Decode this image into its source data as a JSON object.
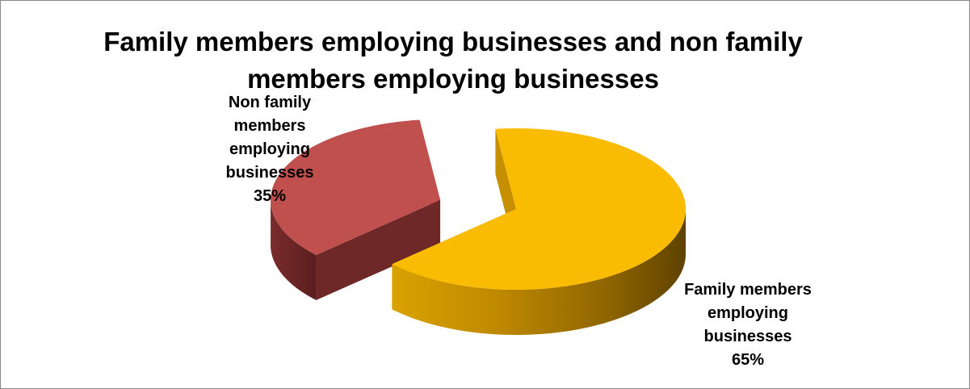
{
  "chart_data": {
    "type": "pie",
    "title": "Family members employing businesses and non family members employing businesses",
    "slices": [
      {
        "label": "Family members employing businesses",
        "value": 65,
        "value_label": "65%",
        "color": "#F9BC02",
        "side_color": "#C68F00",
        "label_lines": [
          "Family members",
          "employing",
          "businesses",
          "65%"
        ]
      },
      {
        "label": "Non family members employing businesses",
        "value": 35,
        "value_label": "35%",
        "color": "#C0504D",
        "side_color": "#6E2828",
        "label_lines": [
          "Non family",
          "members",
          "employing",
          "businesses",
          "35%"
        ]
      }
    ],
    "style": "3d-exploded"
  }
}
